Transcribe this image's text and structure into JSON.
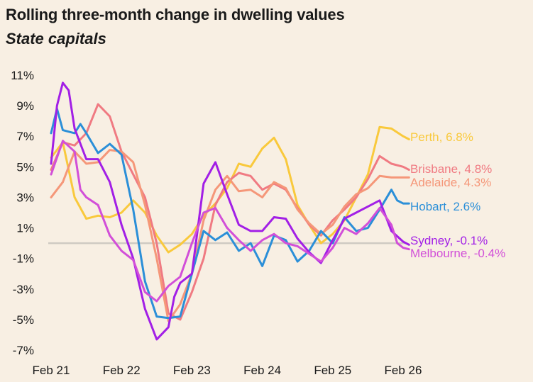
{
  "title": "Rolling three-month change in dwelling values",
  "subtitle": "State capitals",
  "chart_data": {
    "type": "line",
    "title": "Rolling three-month change in dwelling values",
    "subtitle": "State capitals",
    "xlabel": "",
    "ylabel": "",
    "ylim": [
      -7.5,
      11.5
    ],
    "y_ticks": [
      11,
      9,
      7,
      5,
      3,
      1,
      -1,
      -3,
      -5,
      -7
    ],
    "y_tick_labels": [
      "11%",
      "9%",
      "7%",
      "5%",
      "3%",
      "1%",
      "-1%",
      "-3%",
      "-5%",
      "-7%"
    ],
    "x_ticks": [
      0,
      12,
      24,
      36,
      48,
      60
    ],
    "x_tick_labels": [
      "Feb 21",
      "Feb 22",
      "Feb 23",
      "Feb 24",
      "Feb 25",
      "Feb 26"
    ],
    "x_unit": "months since Feb 2021",
    "grid": false,
    "zero_line": true,
    "series": [
      {
        "name": "Perth",
        "label": "Perth, 6.8%",
        "color": "#f9c93c",
        "x": [
          0,
          2,
          4,
          6,
          8,
          10,
          12,
          14,
          16,
          18,
          20,
          22,
          24,
          26,
          28,
          30,
          32,
          34,
          36,
          38,
          40,
          42,
          44,
          46,
          48,
          50,
          52,
          54,
          56,
          58,
          60,
          61
        ],
        "y": [
          5.6,
          6.6,
          3.0,
          1.6,
          1.8,
          1.7,
          2.0,
          2.8,
          2.0,
          0.5,
          -0.6,
          -0.1,
          0.6,
          1.8,
          2.6,
          3.6,
          5.2,
          5.0,
          6.2,
          6.9,
          5.5,
          2.5,
          1.2,
          0.0,
          0.6,
          1.5,
          3.0,
          4.5,
          7.6,
          7.5,
          7.0,
          6.8
        ]
      },
      {
        "name": "Brisbane",
        "label": "Brisbane, 4.8%",
        "color": "#f07a82",
        "x": [
          0,
          2,
          4,
          6,
          8,
          10,
          12,
          14,
          16,
          18,
          20,
          22,
          24,
          26,
          28,
          30,
          32,
          34,
          36,
          38,
          40,
          42,
          44,
          46,
          48,
          50,
          52,
          54,
          56,
          58,
          60,
          61
        ],
        "y": [
          4.8,
          6.6,
          6.4,
          7.2,
          9.1,
          8.3,
          6.0,
          4.5,
          3.0,
          0.0,
          -4.6,
          -5.0,
          -3.2,
          -1.0,
          2.5,
          4.0,
          4.6,
          4.4,
          3.5,
          3.9,
          3.5,
          2.3,
          1.2,
          0.5,
          1.5,
          2.2,
          3.0,
          4.2,
          5.7,
          5.2,
          5.0,
          4.8
        ]
      },
      {
        "name": "Adelaide",
        "label": "Adelaide, 4.3%",
        "color": "#f59779",
        "x": [
          0,
          2,
          4,
          6,
          8,
          10,
          12,
          14,
          16,
          18,
          20,
          22,
          24,
          26,
          28,
          30,
          32,
          34,
          36,
          38,
          40,
          42,
          44,
          46,
          48,
          50,
          52,
          54,
          56,
          58,
          60,
          61
        ],
        "y": [
          3.0,
          4.0,
          6.0,
          5.2,
          5.3,
          6.1,
          6.0,
          5.3,
          2.5,
          -1.0,
          -5.1,
          -4.0,
          -2.0,
          1.5,
          3.5,
          4.4,
          3.4,
          3.5,
          3.0,
          4.0,
          3.6,
          2.2,
          1.3,
          0.6,
          1.2,
          2.4,
          3.2,
          3.6,
          4.4,
          4.3,
          4.3,
          4.3
        ]
      },
      {
        "name": "Hobart",
        "label": "Hobart, 2.6%",
        "color": "#2b8fd8",
        "x": [
          0,
          1,
          2,
          3,
          4,
          5,
          6,
          8,
          10,
          12,
          14,
          16,
          18,
          20,
          22,
          24,
          26,
          28,
          30,
          32,
          34,
          36,
          38,
          40,
          42,
          44,
          46,
          48,
          50,
          52,
          54,
          56,
          58,
          59,
          60,
          61
        ],
        "y": [
          7.2,
          8.8,
          7.4,
          7.3,
          7.2,
          7.8,
          7.2,
          5.9,
          6.5,
          5.8,
          2.2,
          -2.5,
          -4.8,
          -4.9,
          -4.8,
          -2.0,
          0.8,
          0.2,
          0.7,
          -0.5,
          0.0,
          -1.5,
          0.5,
          0.2,
          -1.2,
          -0.5,
          0.8,
          0.0,
          1.7,
          0.8,
          1.0,
          2.2,
          3.5,
          2.8,
          2.6,
          2.6
        ]
      },
      {
        "name": "Sydney",
        "label": "Sydney, -0.1%",
        "color": "#a21fe6",
        "x": [
          0,
          1,
          2,
          3,
          4,
          6,
          8,
          10,
          12,
          14,
          16,
          18,
          20,
          21,
          22,
          24,
          26,
          28,
          30,
          32,
          34,
          36,
          38,
          40,
          42,
          44,
          46,
          48,
          50,
          52,
          54,
          56,
          58,
          60,
          61
        ],
        "y": [
          5.2,
          9.0,
          10.5,
          10.0,
          7.5,
          5.5,
          5.5,
          4.0,
          1.2,
          -1.0,
          -4.3,
          -6.3,
          -5.5,
          -3.5,
          -2.6,
          -2.0,
          3.9,
          5.3,
          3.2,
          1.2,
          0.8,
          0.8,
          1.7,
          1.6,
          0.3,
          -0.6,
          -1.3,
          0.2,
          1.6,
          2.0,
          2.4,
          2.8,
          0.8,
          0.1,
          -0.1
        ]
      },
      {
        "name": "Melbourne",
        "label": "Melbourne, -0.4%",
        "color": "#d24fd8",
        "x": [
          0,
          2,
          4,
          5,
          6,
          8,
          10,
          12,
          14,
          16,
          18,
          20,
          22,
          24,
          26,
          28,
          30,
          32,
          34,
          36,
          38,
          40,
          42,
          44,
          46,
          48,
          50,
          52,
          54,
          56,
          58,
          59,
          60,
          61
        ],
        "y": [
          4.5,
          6.7,
          6.0,
          3.5,
          3.0,
          2.5,
          0.5,
          -0.5,
          -1.1,
          -3.2,
          -3.8,
          -2.8,
          -2.2,
          0.0,
          2.0,
          2.3,
          1.0,
          0.2,
          -0.5,
          0.2,
          0.6,
          0.0,
          -0.2,
          -0.7,
          -1.2,
          -0.3,
          1.0,
          0.6,
          1.3,
          2.3,
          1.2,
          0.0,
          -0.3,
          -0.4
        ]
      }
    ]
  }
}
